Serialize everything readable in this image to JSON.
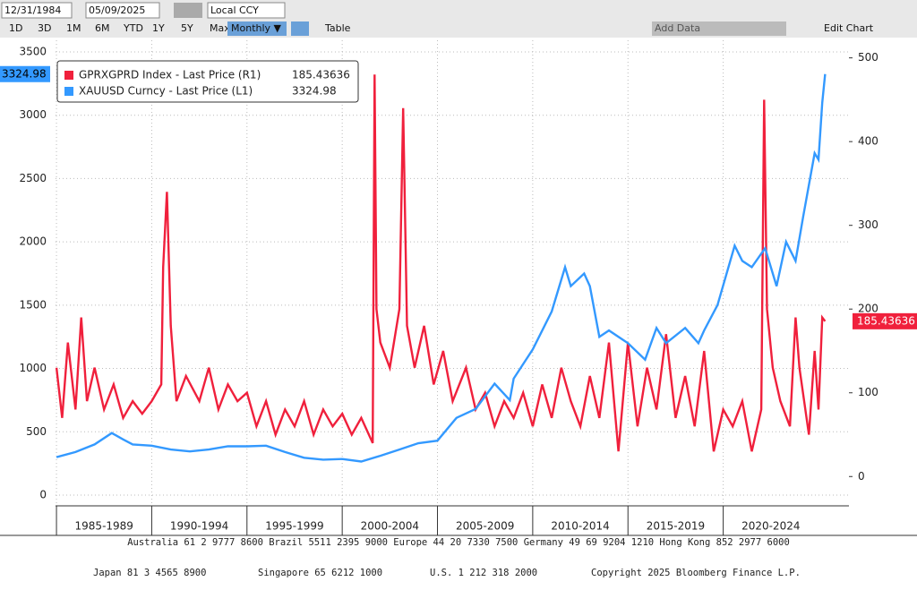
{
  "toolbar": {
    "start_date": "12/31/1984",
    "end_date": "05/09/2025",
    "currency": "Local CCY",
    "ranges": [
      "1D",
      "3D",
      "1M",
      "6M",
      "YTD",
      "1Y",
      "5Y",
      "Max"
    ],
    "frequency": "Monthly ▼",
    "table": "Table",
    "add_data": "Add Data",
    "edit_chart": "Edit Chart"
  },
  "chart_data": {
    "type": "line",
    "xlim": [
      1984.95,
      2026.6
    ],
    "xticks": [
      {
        "value": 1985,
        "label": "1985-1989"
      },
      {
        "value": 1990,
        "label": "1990-1994"
      },
      {
        "value": 1995,
        "label": "1995-1999"
      },
      {
        "value": 2000,
        "label": "2000-2004"
      },
      {
        "value": 2005,
        "label": "2005-2009"
      },
      {
        "value": 2010,
        "label": "2010-2014"
      },
      {
        "value": 2015,
        "label": "2015-2019"
      },
      {
        "value": 2020,
        "label": "2020-2024"
      }
    ],
    "ylim": [
      -85,
      3592
    ],
    "yticks": [
      0,
      500,
      1000,
      1500,
      2000,
      2500,
      3000,
      3500
    ],
    "y2lim": [
      -35,
      521
    ],
    "y2ticks": [
      0,
      100,
      200,
      300,
      400,
      500
    ],
    "grid": true,
    "series": [
      {
        "name": "GPRXGPRD Index - Last Price (R1)",
        "color": "#f0203c",
        "axis": "y2",
        "x": [
          1985,
          1985.3,
          1985.6,
          1986,
          1986.3,
          1986.6,
          1987,
          1987.5,
          1988,
          1988.5,
          1989,
          1989.5,
          1990,
          1990.5,
          1990.6,
          1990.8,
          1991,
          1991.3,
          1991.8,
          1992.5,
          1993,
          1993.5,
          1994,
          1994.5,
          1995,
          1995.5,
          1996,
          1996.5,
          1997,
          1997.5,
          1998,
          1998.5,
          1999,
          1999.5,
          2000,
          2000.5,
          2001,
          2001.6,
          2001.7,
          2001.8,
          2002,
          2002.5,
          2003,
          2003.2,
          2003.4,
          2003.8,
          2004.3,
          2004.8,
          2005.3,
          2005.8,
          2006.5,
          2007,
          2007.5,
          2008,
          2008.5,
          2009,
          2009.5,
          2010,
          2010.5,
          2011,
          2011.5,
          2012,
          2012.5,
          2013,
          2013.5,
          2014,
          2014.5,
          2015,
          2015.5,
          2016,
          2016.5,
          2017,
          2017.5,
          2018,
          2018.5,
          2019,
          2019.5,
          2020,
          2020.5,
          2021,
          2021.5,
          2022,
          2022.15,
          2022.3,
          2022.6,
          2023,
          2023.5,
          2023.8,
          2024,
          2024.5,
          2024.8,
          2025,
          2025.2,
          2025.35
        ],
        "values": [
          130,
          70,
          160,
          80,
          190,
          90,
          130,
          80,
          110,
          70,
          90,
          75,
          90,
          110,
          250,
          340,
          180,
          90,
          120,
          90,
          130,
          80,
          110,
          90,
          100,
          60,
          90,
          50,
          80,
          60,
          90,
          50,
          80,
          60,
          75,
          50,
          70,
          40,
          480,
          200,
          160,
          130,
          200,
          440,
          180,
          130,
          180,
          110,
          150,
          90,
          130,
          80,
          100,
          60,
          90,
          70,
          100,
          60,
          110,
          70,
          130,
          90,
          60,
          120,
          70,
          160,
          30,
          160,
          60,
          130,
          80,
          170,
          70,
          120,
          60,
          150,
          30,
          80,
          60,
          90,
          30,
          80,
          450,
          200,
          130,
          90,
          60,
          190,
          130,
          50,
          150,
          80,
          190,
          185.43636
        ]
      },
      {
        "name": "XAUUSD Curncy - Last Price (L1)",
        "color": "#3399ff",
        "x": [
          1985,
          1986,
          1987,
          1987.9,
          1988.5,
          1989,
          1990,
          1991,
          1992,
          1993,
          1994,
          1995,
          1996,
          1997,
          1998,
          1999,
          2000,
          2001,
          2002,
          2003,
          2004,
          2005,
          2006,
          2007,
          2008,
          2008.8,
          2009,
          2010,
          2011,
          2011.7,
          2012,
          2012.7,
          2013,
          2013.5,
          2014,
          2015,
          2015.9,
          2016.5,
          2017,
          2018,
          2018.7,
          2019,
          2019.7,
          2020.6,
          2021,
          2021.5,
          2022.2,
          2022.8,
          2023.3,
          2023.8,
          2024.2,
          2024.8,
          2025,
          2025.2,
          2025.35
        ],
        "values": [
          300,
          340,
          400,
          490,
          440,
          400,
          390,
          360,
          345,
          360,
          385,
          385,
          390,
          340,
          295,
          280,
          285,
          265,
          310,
          360,
          410,
          430,
          610,
          680,
          880,
          750,
          920,
          1150,
          1450,
          1800,
          1650,
          1750,
          1650,
          1250,
          1300,
          1200,
          1070,
          1320,
          1200,
          1320,
          1200,
          1300,
          1500,
          1970,
          1850,
          1800,
          1950,
          1650,
          2000,
          1850,
          2200,
          2700,
          2650,
          3100,
          3324.98
        ]
      }
    ]
  },
  "footer": {
    "line1": "Australia 61 2 9777 8600 Brazil 5511 2395 9000 Europe 44 20 7330 7500 Germany 49 69 9204 1210 Hong Kong 852 2977 6000",
    "line2": [
      "Japan 81 3 4565 8900",
      "Singapore 65 6212 1000",
      "U.S. 1 212 318 2000",
      "Copyright 2025 Bloomberg Finance L.P."
    ]
  }
}
